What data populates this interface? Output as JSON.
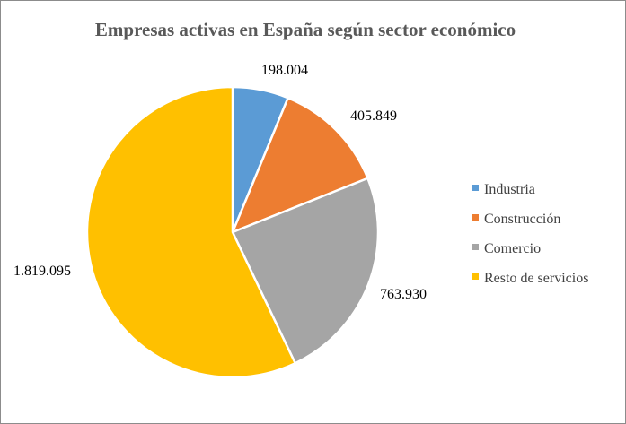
{
  "chart_data": {
    "type": "pie",
    "title": "Empresas activas en España según sector económico",
    "categories": [
      "Industria",
      "Construcción",
      "Comercio",
      "Resto de servicios"
    ],
    "values": [
      198004,
      405849,
      763930,
      1819095
    ],
    "data_labels": [
      "198.004",
      "405.849",
      "763.930",
      "1.819.095"
    ],
    "colors": [
      "#5b9bd5",
      "#ed7d31",
      "#a5a5a5",
      "#ffc000"
    ],
    "start_angle": "12 o'clock",
    "direction": "clockwise",
    "legend_position": "right"
  }
}
